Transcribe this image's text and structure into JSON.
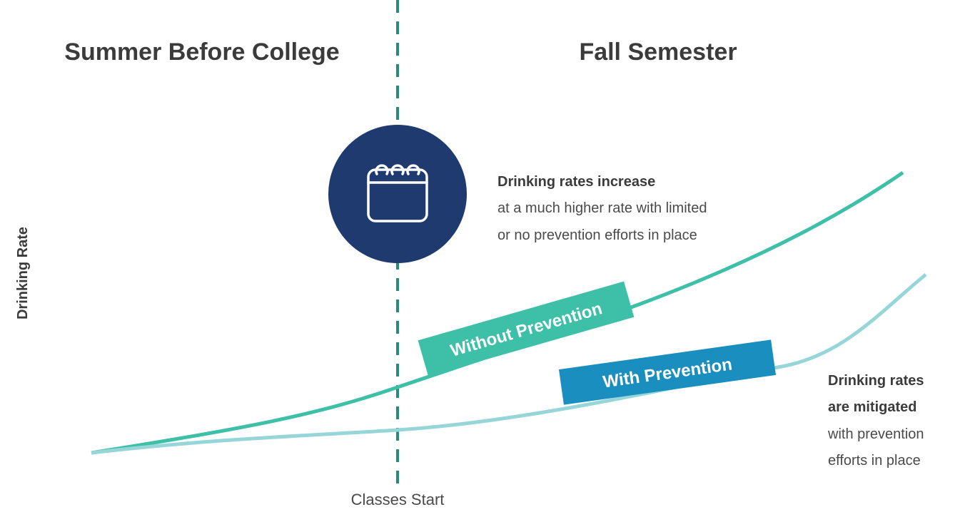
{
  "sections": {
    "left": "Summer Before College",
    "right": "Fall Semester"
  },
  "y_axis_label": "Drinking Rate",
  "x_marker_label": "Classes Start",
  "series_labels": [
    "Without Prevention",
    "With Prevention"
  ],
  "annotations": [
    {
      "heading": [
        "Drinking rates increase"
      ],
      "body": [
        "at a much higher rate with limited",
        "or no prevention efforts in place"
      ]
    },
    {
      "heading": [
        "Drinking rates",
        "are mitigated"
      ],
      "body": [
        "with prevention",
        "efforts in place"
      ]
    }
  ]
}
